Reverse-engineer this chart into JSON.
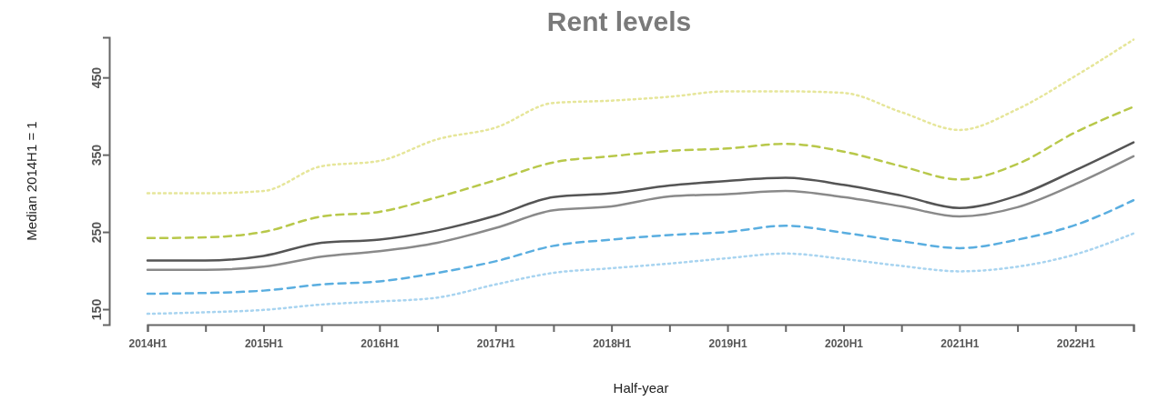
{
  "chart_data": {
    "type": "line",
    "title": "Rent levels",
    "xlabel": "Half-year",
    "ylabel": "Median 2014H1 = 1",
    "categories": [
      "2014H1",
      null,
      "2015H1",
      null,
      "2016H1",
      null,
      "2017H1",
      null,
      "2018H1",
      null,
      "2019H1",
      null,
      "2020H1",
      null,
      "2021H1",
      null,
      "2022H1",
      null
    ],
    "ylim": [
      130,
      502
    ],
    "yticks": [
      150,
      250,
      350,
      450
    ],
    "series": [
      {
        "color": "#e6e69a",
        "line_style": "dotted",
        "values": [
          300,
          300,
          303,
          335,
          342,
          370,
          385,
          417,
          420,
          425,
          432,
          432,
          430,
          405,
          382,
          409,
          452,
          499
        ]
      },
      {
        "color": "#b8c84a",
        "line_style": "dashed",
        "values": [
          242,
          243,
          250,
          270,
          276,
          295,
          317,
          340,
          348,
          355,
          358,
          364,
          354,
          335,
          318,
          338,
          379,
          412
        ]
      },
      {
        "color": "#555555",
        "line_style": "solid",
        "values": [
          213,
          213,
          219,
          236,
          240,
          252,
          271,
          295,
          300,
          310,
          316,
          320,
          311,
          297,
          281,
          297,
          330,
          366
        ]
      },
      {
        "color": "#8a8a8a",
        "line_style": "solid",
        "values": [
          201,
          201,
          205,
          218,
          225,
          236,
          255,
          278,
          283,
          296,
          299,
          303,
          295,
          283,
          270,
          282,
          312,
          348
        ]
      },
      {
        "color": "#5aaee0",
        "line_style": "dashed",
        "values": [
          170,
          171,
          174,
          182,
          186,
          197,
          212,
          232,
          240,
          246,
          250,
          258,
          249,
          238,
          229,
          240,
          259,
          291
        ]
      },
      {
        "color": "#a8d4f0",
        "line_style": "dotted",
        "values": [
          144,
          146,
          149,
          156,
          160,
          165,
          182,
          197,
          203,
          209,
          216,
          222,
          215,
          206,
          199,
          205,
          221,
          248
        ]
      }
    ]
  }
}
